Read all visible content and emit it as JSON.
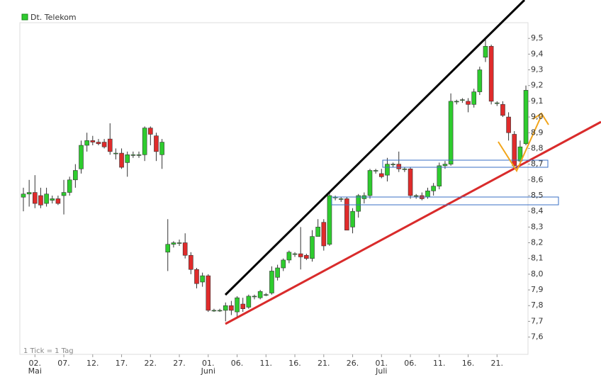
{
  "chart_data": {
    "type": "candlestick",
    "legend_label": "Dt. Telekom",
    "note": "1 Tick = 1 Tag",
    "up_color": "#2ecc2e",
    "down_color": "#e02b2b",
    "categories": [
      null,
      null,
      null,
      null,
      null,
      null,
      null,
      null,
      null,
      null,
      null,
      null,
      null,
      null,
      null,
      null,
      null,
      null,
      null,
      null,
      null,
      null,
      null,
      null,
      null,
      null,
      null,
      null,
      null,
      null,
      null,
      null,
      null,
      null,
      null,
      null,
      null,
      null,
      null,
      null,
      null,
      null,
      null,
      null,
      null,
      null,
      null,
      null,
      null,
      null,
      null,
      null,
      null,
      null,
      null,
      null,
      null,
      null,
      null,
      null,
      null,
      null,
      null,
      null,
      null,
      null,
      null,
      null,
      null,
      null,
      null,
      null,
      null,
      null,
      null,
      null,
      null,
      null,
      null,
      null,
      null,
      null,
      null,
      null,
      null,
      null,
      null,
      null
    ],
    "series": [
      {
        "name": "Dt. Telekom",
        "open": [
          8.49,
          8.51,
          8.52,
          8.5,
          8.45,
          8.47,
          8.48,
          8.5,
          8.52,
          8.6,
          8.67,
          8.82,
          8.85,
          8.84,
          8.84,
          8.86,
          8.77,
          8.77,
          8.71,
          8.76,
          8.76,
          8.76,
          8.93,
          8.88,
          8.76,
          8.14,
          8.19,
          8.2,
          8.2,
          8.12,
          8.03,
          7.95,
          7.99,
          7.77,
          7.77,
          7.77,
          7.8,
          7.76,
          7.81,
          7.79,
          7.86,
          7.85,
          7.87,
          7.88,
          7.98,
          8.04,
          8.09,
          8.13,
          8.13,
          8.12,
          8.1,
          8.24,
          8.33,
          8.19,
          8.49,
          8.48,
          8.48,
          8.3,
          8.4,
          8.48,
          8.5,
          8.66,
          8.64,
          8.63,
          8.7,
          8.7,
          8.67,
          8.67,
          8.5,
          8.5,
          8.49,
          8.53,
          8.56,
          8.69,
          8.7,
          9.1,
          9.11,
          9.1,
          9.08,
          9.16,
          9.38,
          9.45,
          9.09,
          9.08,
          9.0,
          8.89,
          8.72,
          8.83
        ],
        "high": [
          8.55,
          8.6,
          8.63,
          8.55,
          8.55,
          8.5,
          8.5,
          8.6,
          8.62,
          8.7,
          8.85,
          8.9,
          8.88,
          8.86,
          8.86,
          8.96,
          8.8,
          8.8,
          8.78,
          8.78,
          8.78,
          8.94,
          8.94,
          8.9,
          8.86,
          8.35,
          8.21,
          8.22,
          8.26,
          8.14,
          8.04,
          8.01,
          8.0,
          7.78,
          7.78,
          7.82,
          7.83,
          7.86,
          7.85,
          7.87,
          7.87,
          7.9,
          7.88,
          8.05,
          8.06,
          8.1,
          8.15,
          8.14,
          8.3,
          8.13,
          8.28,
          8.35,
          8.35,
          8.52,
          8.5,
          8.49,
          8.49,
          8.42,
          8.51,
          8.52,
          8.67,
          8.67,
          8.67,
          8.74,
          8.71,
          8.78,
          8.68,
          8.68,
          8.51,
          8.52,
          8.55,
          8.58,
          8.71,
          8.72,
          9.15,
          9.11,
          9.12,
          9.12,
          9.18,
          9.32,
          9.5,
          9.46,
          9.1,
          9.1,
          9.03,
          8.91,
          8.85,
          9.2
        ],
        "low": [
          8.4,
          8.43,
          8.42,
          8.42,
          8.43,
          8.45,
          8.44,
          8.38,
          8.5,
          8.55,
          8.64,
          8.78,
          8.82,
          8.82,
          8.8,
          8.76,
          8.73,
          8.67,
          8.62,
          8.74,
          8.74,
          8.72,
          8.82,
          8.72,
          8.67,
          8.02,
          8.17,
          8.18,
          8.1,
          8.0,
          7.91,
          7.92,
          7.76,
          7.76,
          7.76,
          7.7,
          7.74,
          7.72,
          7.76,
          7.78,
          7.84,
          7.84,
          7.86,
          7.87,
          7.96,
          8.02,
          8.07,
          8.11,
          8.03,
          8.09,
          8.08,
          8.24,
          8.15,
          8.18,
          8.47,
          8.46,
          8.28,
          8.26,
          8.36,
          8.45,
          8.48,
          8.64,
          8.61,
          8.59,
          8.68,
          8.65,
          8.65,
          8.48,
          8.48,
          8.47,
          8.48,
          8.5,
          8.54,
          8.67,
          8.69,
          9.08,
          9.09,
          9.03,
          9.06,
          9.14,
          9.35,
          9.08,
          9.07,
          9.0,
          8.85,
          8.68,
          8.7,
          8.82
        ],
        "close": [
          8.51,
          8.52,
          8.45,
          8.44,
          8.51,
          8.48,
          8.45,
          8.52,
          8.6,
          8.66,
          8.82,
          8.85,
          8.84,
          8.83,
          8.81,
          8.78,
          8.77,
          8.68,
          8.76,
          8.76,
          8.76,
          8.93,
          8.89,
          8.78,
          8.84,
          8.19,
          8.2,
          8.2,
          8.12,
          8.03,
          7.94,
          7.99,
          7.77,
          7.77,
          7.77,
          7.8,
          7.77,
          7.85,
          7.78,
          7.86,
          7.86,
          7.89,
          7.87,
          8.02,
          8.04,
          8.09,
          8.14,
          8.13,
          8.11,
          8.1,
          8.24,
          8.3,
          8.18,
          8.5,
          8.49,
          8.48,
          8.28,
          8.4,
          8.5,
          8.5,
          8.66,
          8.66,
          8.62,
          8.7,
          8.7,
          8.67,
          8.67,
          8.5,
          8.5,
          8.48,
          8.53,
          8.56,
          8.69,
          8.7,
          9.1,
          9.1,
          9.11,
          9.08,
          9.16,
          9.3,
          9.45,
          9.1,
          9.09,
          9.01,
          8.9,
          8.69,
          8.81,
          9.17
        ]
      }
    ],
    "ylim": [
      7.49,
      9.6
    ],
    "yticks": [
      {
        "value": 7.6,
        "label": "7,6"
      },
      {
        "value": 7.7,
        "label": "7,7"
      },
      {
        "value": 7.8,
        "label": "7,8"
      },
      {
        "value": 7.9,
        "label": "7,9"
      },
      {
        "value": 8.0,
        "label": "8,0"
      },
      {
        "value": 8.1,
        "label": "8,1"
      },
      {
        "value": 8.2,
        "label": "8,2"
      },
      {
        "value": 8.3,
        "label": "8,3"
      },
      {
        "value": 8.4,
        "label": "8,4"
      },
      {
        "value": 8.5,
        "label": "8,5"
      },
      {
        "value": 8.6,
        "label": "8,6"
      },
      {
        "value": 8.7,
        "label": "8,7"
      },
      {
        "value": 8.8,
        "label": "8,8"
      },
      {
        "value": 8.9,
        "label": "8,9"
      },
      {
        "value": 9.0,
        "label": "9,0"
      },
      {
        "value": 9.1,
        "label": "9,1"
      },
      {
        "value": 9.2,
        "label": "9,2"
      },
      {
        "value": 9.3,
        "label": "9,3"
      },
      {
        "value": 9.4,
        "label": "9,4"
      },
      {
        "value": 9.5,
        "label": "9,5"
      }
    ],
    "xticks": [
      {
        "value": 2,
        "label": "02."
      },
      {
        "value": 7,
        "label": "07."
      },
      {
        "value": 12,
        "label": "12."
      },
      {
        "value": 17,
        "label": "17."
      },
      {
        "value": 22,
        "label": "22."
      },
      {
        "value": 27,
        "label": "27."
      },
      {
        "value": 32,
        "label": "01."
      },
      {
        "value": 37,
        "label": "06."
      },
      {
        "value": 42,
        "label": "11."
      },
      {
        "value": 47,
        "label": "16."
      },
      {
        "value": 52,
        "label": "21."
      },
      {
        "value": 57,
        "label": "26."
      },
      {
        "value": 62,
        "label": "01."
      },
      {
        "value": 67,
        "label": "06."
      },
      {
        "value": 72,
        "label": "11."
      },
      {
        "value": 77,
        "label": "16."
      },
      {
        "value": 82,
        "label": "21."
      }
    ],
    "month_labels": [
      {
        "value": 2,
        "label": "Mai"
      },
      {
        "value": 32,
        "label": "Juni"
      },
      {
        "value": 62,
        "label": "Juli"
      }
    ]
  }
}
